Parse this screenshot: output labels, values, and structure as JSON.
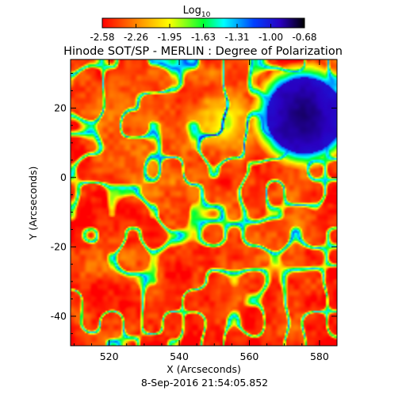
{
  "chart_data": {
    "type": "heatmap",
    "title": "Hinode SOT/SP - MERLIN : Degree of Polarization",
    "colorbar": {
      "label_base": "Log",
      "label_sub": "10",
      "ticks": [
        "-2.58",
        "-2.26",
        "-1.95",
        "-1.63",
        "-1.31",
        "-1.00",
        "-0.68"
      ],
      "range": [
        -2.58,
        -0.68
      ],
      "colormap": "rainbow"
    },
    "xlabel": "X (Arcseconds)",
    "ylabel": "Y (Arcseconds)",
    "xlim": [
      509,
      585
    ],
    "ylim": [
      -48.5,
      34
    ],
    "xticks": [
      {
        "value": 520,
        "label": "520"
      },
      {
        "value": 540,
        "label": "540"
      },
      {
        "value": 560,
        "label": "560"
      },
      {
        "value": 580,
        "label": "580"
      }
    ],
    "yticks": [
      {
        "value": -40,
        "label": "-40"
      },
      {
        "value": -20,
        "label": "-20"
      },
      {
        "value": 0,
        "label": "0"
      },
      {
        "value": 20,
        "label": "20"
      }
    ],
    "timestamp": "8-Sep-2016 21:54:05.852",
    "field_features": {
      "sunspot_center": [
        576,
        18
      ],
      "sunspot_radius": 11,
      "background_value": -2.45
    }
  }
}
